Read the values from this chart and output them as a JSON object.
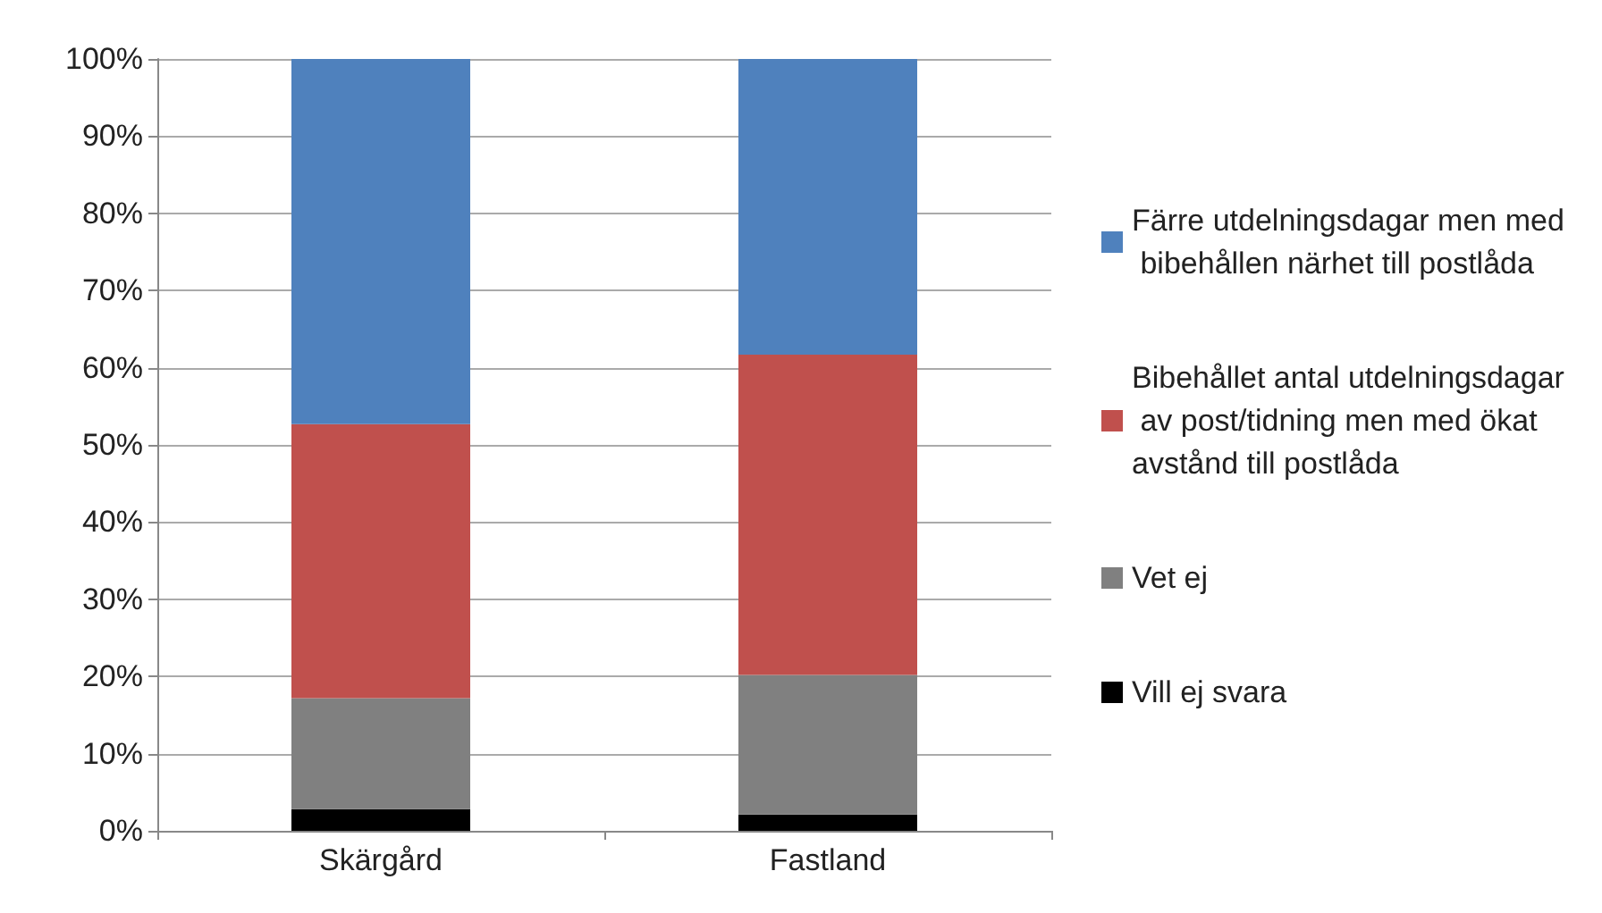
{
  "chart_data": {
    "type": "bar",
    "stacked": true,
    "categories": [
      "Skärgård",
      "Fastland"
    ],
    "series": [
      {
        "name": "Vill ej svara",
        "color": "#000000",
        "values": [
          2.8,
          2.1
        ]
      },
      {
        "name": "Vet ej",
        "color": "#808080",
        "values": [
          14.4,
          18.1
        ]
      },
      {
        "name": "Bibehållet antal utdelningsdagar av post/tidning men med ökat avstånd till postlåda",
        "color": "#c0504d",
        "values": [
          35.5,
          41.5
        ]
      },
      {
        "name": "Färre utdelningsdagar men med bibehållen närhet till postlåda",
        "color": "#4f81bd",
        "values": [
          47.3,
          38.3
        ]
      }
    ],
    "ylim": [
      0,
      100
    ],
    "yticks": [
      {
        "value": 0,
        "label": "0%"
      },
      {
        "value": 10,
        "label": "10%"
      },
      {
        "value": 20,
        "label": "20%"
      },
      {
        "value": 30,
        "label": "30%"
      },
      {
        "value": 40,
        "label": "40%"
      },
      {
        "value": 50,
        "label": "50%"
      },
      {
        "value": 60,
        "label": "60%"
      },
      {
        "value": 70,
        "label": "70%"
      },
      {
        "value": 80,
        "label": "80%"
      },
      {
        "value": 90,
        "label": "90%"
      },
      {
        "value": 100,
        "label": "100%"
      }
    ],
    "grid": "y",
    "legend": "right"
  }
}
